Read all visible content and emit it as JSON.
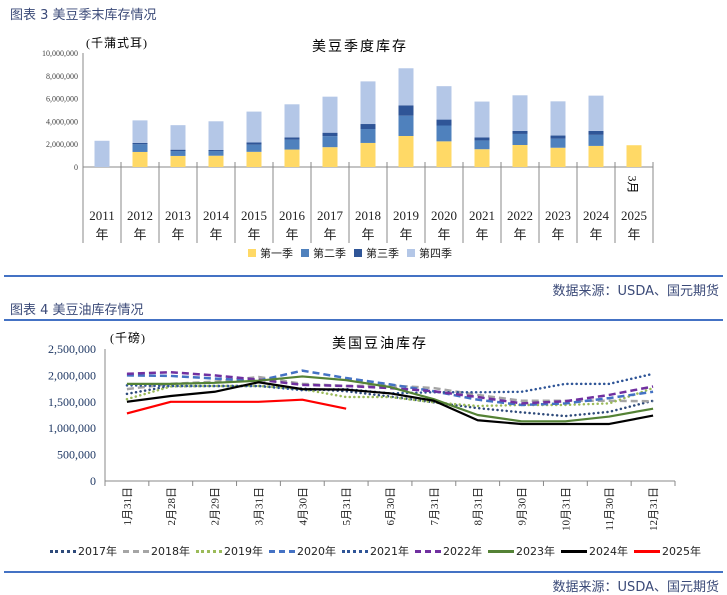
{
  "figure3": {
    "title": "图表 3  美豆季末库存情况",
    "source": "数据来源：USDA、国元期货"
  },
  "figure4": {
    "title": "图表 4  美豆油库存情况",
    "source": "数据来源：USDA、国元期货"
  },
  "chart_data": [
    {
      "type": "bar",
      "stacked": true,
      "title": "美豆季度库存",
      "ylabel": "(千蒲式耳)",
      "ylim": [
        0,
        10000000
      ],
      "yticks": [
        "0",
        "2,000,000",
        "4,000,000",
        "6,000,000",
        "8,000,000",
        "10,000,000"
      ],
      "categories": [
        "2011年",
        "2012年",
        "2013年",
        "2014年",
        "2015年",
        "2016年",
        "2017年",
        "2018年",
        "2019年",
        "2020年",
        "2021年",
        "2022年",
        "2023年",
        "2024年",
        "2025年"
      ],
      "annotation": "3月",
      "legend_position": "bottom",
      "grid": false,
      "series": [
        {
          "name": "第一季",
          "color": "#ffd966",
          "values": [
            null,
            1320000,
            970000,
            990000,
            1330000,
            1530000,
            1740000,
            2110000,
            2720000,
            2250000,
            1560000,
            1930000,
            1690000,
            1850000,
            1910000
          ]
        },
        {
          "name": "第二季",
          "color": "#4f81bd",
          "values": [
            null,
            670000,
            430000,
            410000,
            630000,
            870000,
            970000,
            1220000,
            1780000,
            1390000,
            770000,
            970000,
            800000,
            970000,
            null
          ]
        },
        {
          "name": "第三季",
          "color": "#2f5597",
          "values": [
            null,
            130000,
            120000,
            90000,
            190000,
            200000,
            300000,
            440000,
            910000,
            520000,
            260000,
            270000,
            270000,
            340000,
            null
          ]
        },
        {
          "name": "第四季",
          "color": "#b4c7e7",
          "values": [
            2300000,
            1970000,
            2150000,
            2520000,
            2710000,
            2900000,
            3160000,
            3740000,
            3250000,
            2930000,
            3150000,
            3120000,
            3000000,
            3100000,
            null
          ]
        }
      ]
    },
    {
      "type": "line",
      "title": "美国豆油库存",
      "ylabel": "(千磅)",
      "ylim": [
        0,
        2500000
      ],
      "yticks": [
        "0",
        "500,000",
        "1,000,000",
        "1,500,000",
        "2,000,000",
        "2,500,000"
      ],
      "categories": [
        "1月31日",
        "2月28日",
        "2月29日",
        "3月31日",
        "4月30日",
        "5月31日",
        "6月30日",
        "7月31日",
        "8月31日",
        "9月30日",
        "10月31日",
        "11月30日",
        "12月31日"
      ],
      "legend_position": "bottom",
      "grid": false,
      "series": [
        {
          "name": "2017年",
          "color": "#2e4a7a",
          "style": "dotted",
          "values": [
            1650000,
            1800000,
            1800000,
            1800000,
            1750000,
            1700000,
            1600000,
            1490000,
            1380000,
            1300000,
            1230000,
            1310000,
            1520000
          ]
        },
        {
          "name": "2018年",
          "color": "#a5a5a5",
          "style": "dashed",
          "values": [
            1740000,
            1840000,
            1880000,
            1970000,
            1840000,
            1800000,
            1810000,
            1760000,
            1630000,
            1520000,
            1520000,
            1520000,
            1510000
          ]
        },
        {
          "name": "2019年",
          "color": "#9bbb59",
          "style": "dotted",
          "values": [
            1550000,
            1790000,
            1800000,
            1800000,
            1740000,
            1590000,
            1590000,
            1490000,
            1420000,
            1440000,
            1440000,
            1470000,
            1760000
          ]
        },
        {
          "name": "2020年",
          "color": "#4472c4",
          "style": "dashed",
          "values": [
            2000000,
            1990000,
            1940000,
            1900000,
            2090000,
            1950000,
            1830000,
            1700000,
            1540000,
            1440000,
            1470000,
            1570000,
            1690000
          ]
        },
        {
          "name": "2021年",
          "color": "#2f5597",
          "style": "dotted",
          "values": [
            1810000,
            1800000,
            1800000,
            1800000,
            1720000,
            1740000,
            1660000,
            1680000,
            1680000,
            1690000,
            1840000,
            1840000,
            2030000
          ]
        },
        {
          "name": "2022年",
          "color": "#7030a0",
          "style": "dashed",
          "values": [
            2030000,
            2060000,
            2000000,
            1920000,
            1820000,
            1800000,
            1760000,
            1700000,
            1590000,
            1470000,
            1510000,
            1630000,
            1790000
          ]
        },
        {
          "name": "2023年",
          "color": "#548235",
          "style": "solid",
          "values": [
            1840000,
            1840000,
            1860000,
            1900000,
            1980000,
            1910000,
            1780000,
            1550000,
            1250000,
            1130000,
            1130000,
            1220000,
            1370000
          ]
        },
        {
          "name": "2024年",
          "color": "#000000",
          "style": "solid",
          "values": [
            1500000,
            1610000,
            1690000,
            1870000,
            1740000,
            1730000,
            1660000,
            1520000,
            1150000,
            1080000,
            1080000,
            1080000,
            1240000
          ]
        },
        {
          "name": "2025年",
          "color": "#ff0000",
          "style": "solid",
          "values": [
            1280000,
            1500000,
            1500000,
            1500000,
            1540000,
            1370000,
            null,
            null,
            null,
            null,
            null,
            null,
            null
          ]
        }
      ]
    }
  ]
}
